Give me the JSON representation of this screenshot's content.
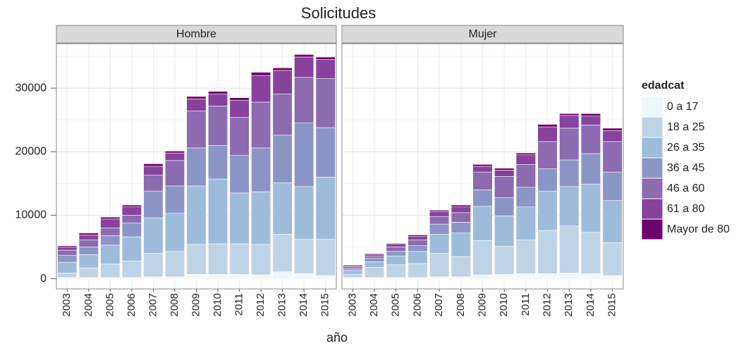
{
  "chart_data": {
    "type": "bar",
    "stacked": true,
    "title": "Solicitudes",
    "x_label": "año",
    "legend_title": "edadcat",
    "facets": [
      "Hombre",
      "Mujer"
    ],
    "categories": [
      "2003",
      "2004",
      "2005",
      "2006",
      "2007",
      "2008",
      "2009",
      "2010",
      "2011",
      "2012",
      "2013",
      "2014",
      "2015"
    ],
    "ylim": [
      -1600,
      37000
    ],
    "yticks": [
      0,
      10000,
      20000,
      30000
    ],
    "grid": true,
    "series": [
      {
        "name": "0 a 17",
        "color": "#edf8fb",
        "values": [
          [
            200,
            200,
            200,
            200,
            300,
            300,
            700,
            700,
            700,
            600,
            1100,
            800,
            500
          ],
          [
            200,
            200,
            200,
            200,
            300,
            300,
            600,
            700,
            800,
            800,
            900,
            800,
            500
          ]
        ]
      },
      {
        "name": "18 a 25",
        "color": "#bfd3e6",
        "values": [
          [
            700,
            1500,
            2100,
            2600,
            3700,
            4000,
            4700,
            4800,
            4800,
            4800,
            5900,
            5400,
            5700
          ],
          [
            500,
            1600,
            2000,
            2200,
            3700,
            3200,
            5400,
            4400,
            5300,
            6800,
            7400,
            6500,
            5200
          ]
        ]
      },
      {
        "name": "26 a 35",
        "color": "#9ebcda",
        "values": [
          [
            1700,
            2100,
            3000,
            3800,
            5600,
            6000,
            9200,
            10200,
            8000,
            8300,
            8100,
            8300,
            9800
          ],
          [
            600,
            900,
            1400,
            1900,
            3000,
            3700,
            5400,
            4800,
            5200,
            6200,
            6200,
            7600,
            6600
          ]
        ]
      },
      {
        "name": "36 a 45",
        "color": "#8c96c6",
        "values": [
          [
            1100,
            1200,
            1500,
            2200,
            4200,
            4300,
            6000,
            5300,
            5900,
            6900,
            7500,
            10000,
            7800
          ],
          [
            300,
            500,
            700,
            900,
            1600,
            1700,
            2600,
            2900,
            3100,
            3500,
            4200,
            4800,
            4500
          ]
        ]
      },
      {
        "name": "46 a 60",
        "color": "#8c6bb1",
        "values": [
          [
            800,
            1100,
            1200,
            1200,
            2500,
            4000,
            5800,
            6200,
            6000,
            7200,
            6500,
            7200,
            7700
          ],
          [
            300,
            400,
            700,
            900,
            1200,
            1500,
            2800,
            3300,
            3600,
            4300,
            5000,
            4500,
            4800
          ]
        ]
      },
      {
        "name": "61 a 80",
        "color": "#88419d",
        "values": [
          [
            500,
            800,
            1400,
            1300,
            1400,
            1200,
            1900,
            1900,
            2700,
            4200,
            3700,
            3200,
            3000
          ],
          [
            200,
            300,
            500,
            600,
            800,
            900,
            900,
            1000,
            1500,
            2300,
            2000,
            1400,
            1700
          ]
        ]
      },
      {
        "name": "Mayor de 80",
        "color": "#6e016b",
        "values": [
          [
            200,
            300,
            300,
            300,
            400,
            300,
            400,
            400,
            400,
            500,
            400,
            400,
            400
          ],
          [
            100,
            100,
            100,
            200,
            200,
            300,
            300,
            300,
            300,
            400,
            300,
            400,
            400
          ]
        ]
      }
    ]
  }
}
